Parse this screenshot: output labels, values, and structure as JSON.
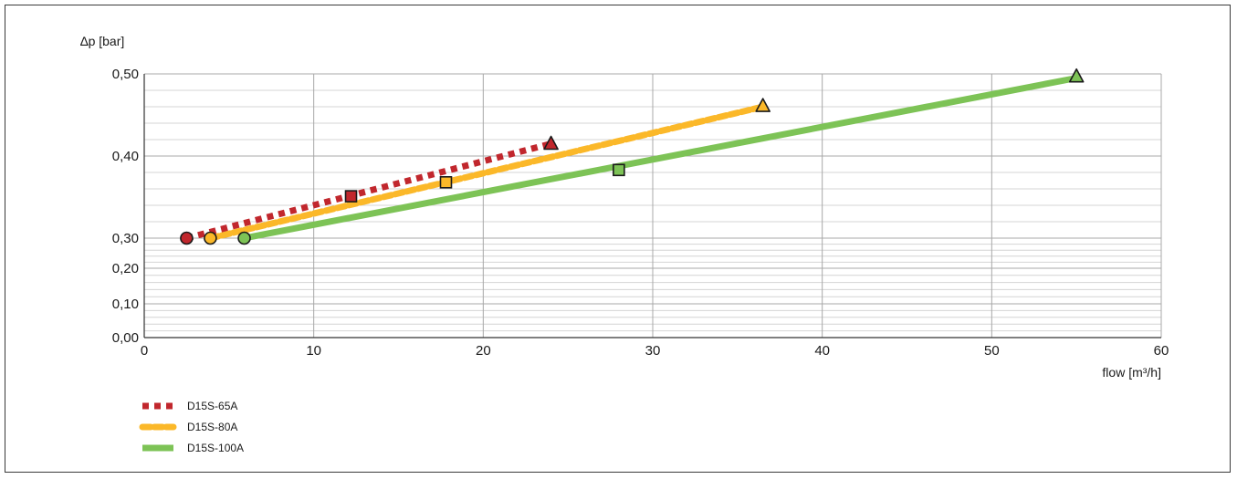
{
  "chart_data": {
    "type": "line",
    "ylabel": "∆p [bar]",
    "xlabel": "flow [m³/h]",
    "xlim": [
      0,
      60
    ],
    "x_ticks": [
      "0",
      "10",
      "20",
      "30",
      "40",
      "50",
      "60"
    ],
    "y_ticks": [
      {
        "value": 0.0,
        "label": "0,00"
      },
      {
        "value": 0.1,
        "label": "0,10"
      },
      {
        "value": 0.2,
        "label": "0,20"
      },
      {
        "value": 0.3,
        "label": "0,30"
      },
      {
        "value": 0.4,
        "label": "0,40"
      },
      {
        "value": 0.5,
        "label": "0,50"
      }
    ],
    "grid": true,
    "legend_position": "bottom-left",
    "series": [
      {
        "name": "D15S-65A",
        "color": "#c1272d",
        "style": "dotted-squares",
        "points": [
          [
            2.5,
            0.3
          ],
          [
            24,
            0.415
          ]
        ],
        "markers": [
          {
            "shape": "circle",
            "x": 2.5,
            "y": 0.3
          },
          {
            "shape": "square",
            "x": 12.2,
            "y": 0.351
          },
          {
            "shape": "triangle",
            "x": 24,
            "y": 0.415
          }
        ]
      },
      {
        "name": "D15S-80A",
        "color": "#fbb829",
        "style": "dashed",
        "points": [
          [
            3.9,
            0.3
          ],
          [
            36.5,
            0.46
          ]
        ],
        "markers": [
          {
            "shape": "circle",
            "x": 3.9,
            "y": 0.3
          },
          {
            "shape": "square",
            "x": 17.8,
            "y": 0.368
          },
          {
            "shape": "triangle",
            "x": 36.5,
            "y": 0.461
          }
        ]
      },
      {
        "name": "D15S-100A",
        "color": "#7dc356",
        "style": "solid",
        "points": [
          [
            5.9,
            0.3
          ],
          [
            55,
            0.495
          ]
        ],
        "markers": [
          {
            "shape": "circle",
            "x": 5.9,
            "y": 0.3
          },
          {
            "shape": "square",
            "x": 28,
            "y": 0.383
          },
          {
            "shape": "triangle",
            "x": 55,
            "y": 0.497
          }
        ]
      }
    ]
  }
}
